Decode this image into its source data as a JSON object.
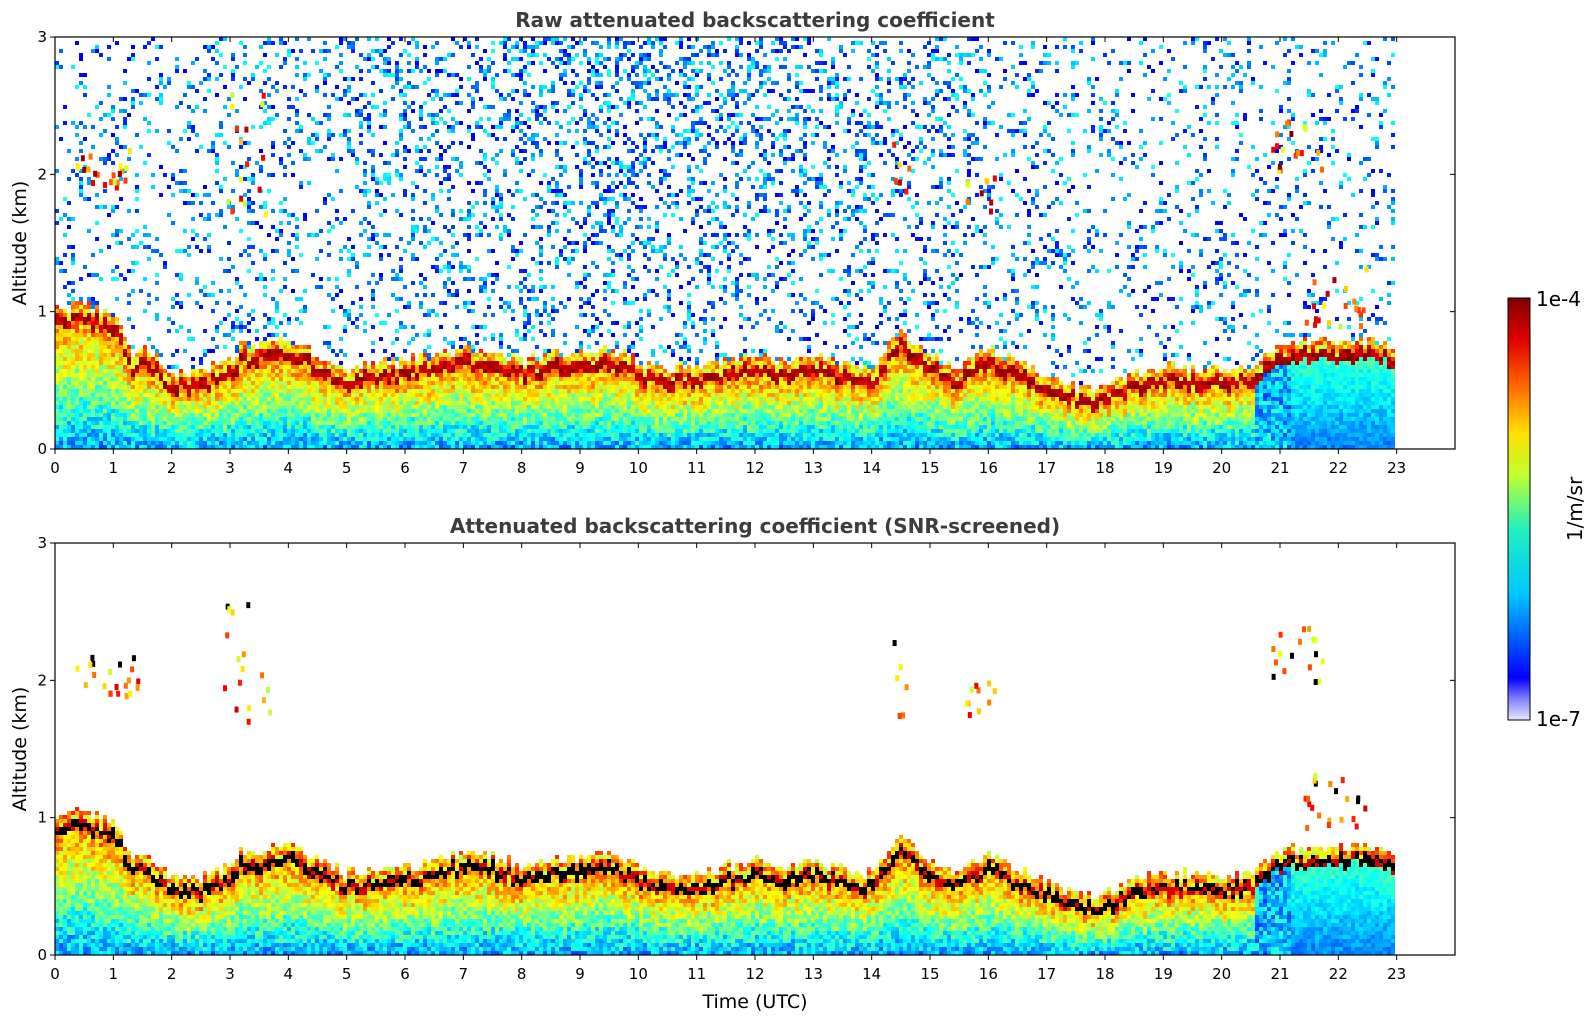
{
  "chart_data": [
    {
      "type": "heatmap",
      "title": "Raw attenuated backscattering coefficient",
      "xlabel": "",
      "ylabel": "Altitude (km)",
      "xlim": [
        0,
        24
      ],
      "ylim": [
        0,
        3
      ],
      "x_ticks": [
        "0",
        "1",
        "2",
        "3",
        "4",
        "5",
        "6",
        "7",
        "8",
        "9",
        "10",
        "11",
        "12",
        "13",
        "14",
        "15",
        "16",
        "17",
        "18",
        "19",
        "20",
        "21",
        "22",
        "23"
      ],
      "y_ticks": [
        "0",
        "1",
        "2",
        "3"
      ],
      "data_end_time": 23,
      "screened": false
    },
    {
      "type": "heatmap",
      "title": "Attenuated backscattering coefficient (SNR-screened)",
      "xlabel": "Time (UTC)",
      "ylabel": "Altitude (km)",
      "xlim": [
        0,
        24
      ],
      "ylim": [
        0,
        3
      ],
      "x_ticks": [
        "0",
        "1",
        "2",
        "3",
        "4",
        "5",
        "6",
        "7",
        "8",
        "9",
        "10",
        "11",
        "12",
        "13",
        "14",
        "15",
        "16",
        "17",
        "18",
        "19",
        "20",
        "21",
        "22",
        "23"
      ],
      "y_ticks": [
        "0",
        "1",
        "2",
        "3"
      ],
      "data_end_time": 23,
      "screened": true
    }
  ],
  "colorbar": {
    "label": "1/m/sr",
    "max_label": "1e-4",
    "min_label": "1e-7",
    "colormap": "jet",
    "scale": "log"
  },
  "layer_profile": {
    "time": [
      0,
      0.5,
      1.0,
      1.35,
      1.5,
      2.0,
      2.5,
      3.0,
      3.2,
      3.5,
      4.0,
      4.5,
      5.0,
      5.5,
      6.0,
      6.5,
      7.0,
      7.5,
      8.0,
      8.5,
      9.0,
      9.5,
      10.0,
      10.5,
      11.0,
      11.5,
      12.0,
      12.5,
      13.0,
      13.5,
      14.0,
      14.5,
      15.0,
      15.5,
      16.0,
      16.5,
      17.0,
      17.5,
      18.0,
      18.5,
      19.0,
      19.5,
      20.0,
      20.5,
      21.0,
      21.5,
      22.0,
      22.5,
      23.0
    ],
    "altitude_km": [
      0.9,
      0.9,
      0.85,
      0.55,
      0.62,
      0.42,
      0.42,
      0.5,
      0.62,
      0.62,
      0.66,
      0.55,
      0.45,
      0.48,
      0.5,
      0.55,
      0.6,
      0.58,
      0.5,
      0.55,
      0.58,
      0.6,
      0.5,
      0.45,
      0.45,
      0.5,
      0.55,
      0.5,
      0.55,
      0.48,
      0.45,
      0.72,
      0.55,
      0.45,
      0.6,
      0.48,
      0.4,
      0.32,
      0.3,
      0.42,
      0.45,
      0.46,
      0.44,
      0.45,
      0.62,
      0.65,
      0.65,
      0.66,
      0.6
    ]
  },
  "cloud_features": [
    {
      "time": [
        0.3,
        1.4
      ],
      "altitude_km": [
        1.9,
        2.2
      ]
    },
    {
      "time": [
        2.85,
        3.7
      ],
      "altitude_km": [
        1.7,
        2.6
      ]
    },
    {
      "time": [
        14.35,
        14.65
      ],
      "altitude_km": [
        1.75,
        2.3
      ]
    },
    {
      "time": [
        15.6,
        16.1
      ],
      "altitude_km": [
        1.75,
        2.0
      ]
    },
    {
      "time": [
        20.8,
        21.7
      ],
      "altitude_km": [
        2.0,
        2.4
      ]
    },
    {
      "time": [
        21.4,
        22.5
      ],
      "altitude_km": [
        0.9,
        1.35
      ]
    }
  ],
  "colors": {
    "high": "#800000",
    "low": "#00008f",
    "text_title": "#3c3c3c"
  }
}
